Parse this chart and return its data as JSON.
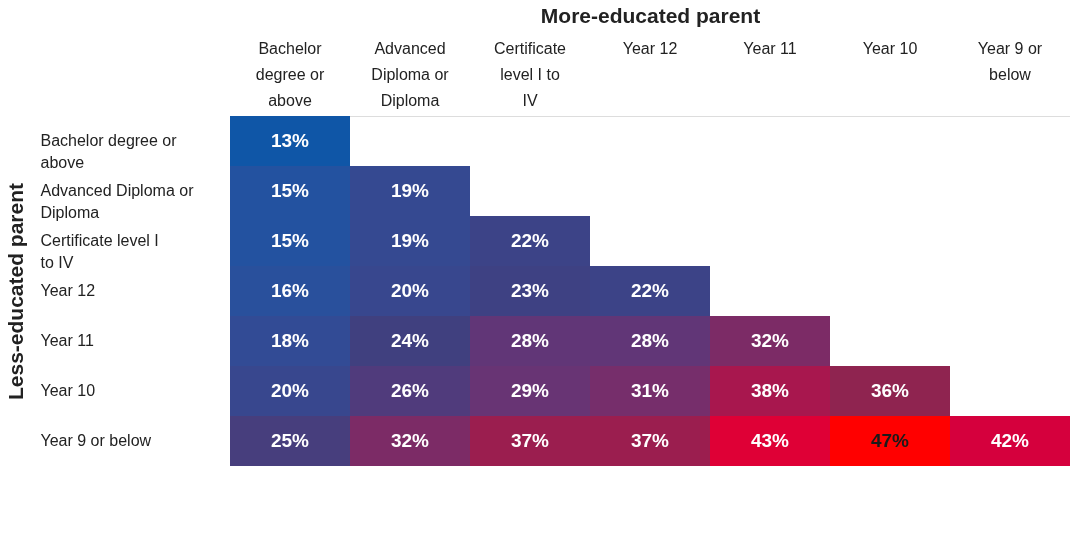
{
  "chart_data": {
    "type": "heatmap",
    "title": "More-educated parent",
    "ylabel": "Less-educated parent",
    "categories": [
      "Bachelor degree or above",
      "Advanced Diploma or Diploma",
      "Certificate level I to IV",
      "Year 12",
      "Year 11",
      "Year 10",
      "Year 9 or below"
    ],
    "y_categories": [
      "Bachelor degree or above",
      "Advanced Diploma or Diploma",
      "Certificate level I to IV",
      "Year 12",
      "Year 11",
      "Year 10",
      "Year 9 or below"
    ],
    "cells": [
      [
        13,
        null,
        null,
        null,
        null,
        null,
        null
      ],
      [
        15,
        19,
        null,
        null,
        null,
        null,
        null
      ],
      [
        15,
        19,
        22,
        null,
        null,
        null,
        null
      ],
      [
        16,
        20,
        23,
        22,
        null,
        null,
        null
      ],
      [
        18,
        24,
        28,
        28,
        32,
        null,
        null
      ],
      [
        20,
        26,
        29,
        31,
        38,
        36,
        null
      ],
      [
        25,
        32,
        37,
        37,
        43,
        47,
        42
      ]
    ],
    "cell_labels": [
      [
        "13%",
        null,
        null,
        null,
        null,
        null,
        null
      ],
      [
        "15%",
        "19%",
        null,
        null,
        null,
        null,
        null
      ],
      [
        "15%",
        "19%",
        "22%",
        null,
        null,
        null,
        null
      ],
      [
        "16%",
        "20%",
        "23%",
        "22%",
        null,
        null,
        null
      ],
      [
        "18%",
        "24%",
        "28%",
        "28%",
        "32%",
        null,
        null
      ],
      [
        "20%",
        "26%",
        "29%",
        "31%",
        "38%",
        "36%",
        null
      ],
      [
        "25%",
        "32%",
        "37%",
        "37%",
        "43%",
        "47%",
        "42%"
      ]
    ]
  }
}
